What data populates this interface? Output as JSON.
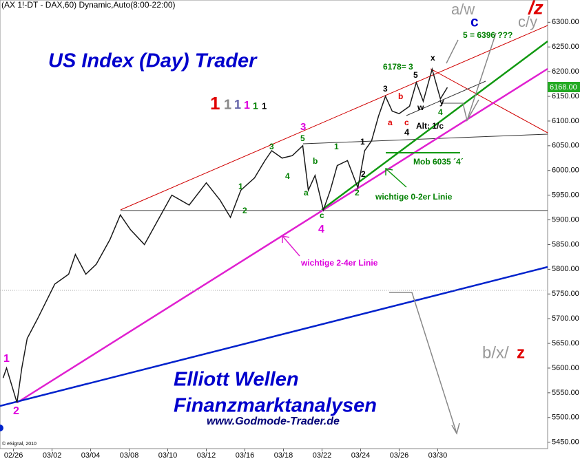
{
  "chart_data": {
    "type": "line",
    "header": "(AX 1!-DT - DAX,60) Dynamic,Auto(8:00-22:00)",
    "copyright": "© eSignal, 2010",
    "title": "US Index (Day) Trader",
    "subtitle_1": "Elliott Wellen",
    "subtitle_2": "Finanzmarktanalysen",
    "website": "www.Godmode-Trader.de",
    "last_price_label": "6168.00",
    "x": [
      -0.54,
      -0.36,
      0.18,
      0.43,
      0.71,
      1.25,
      2.14,
      2.86,
      3.21,
      3.75,
      4.29,
      5.0,
      5.54,
      6.07,
      6.79,
      7.5,
      8.21,
      9.11,
      10.0,
      10.71,
      11.25,
      11.79,
      12.5,
      13.04,
      13.39,
      13.93,
      14.46,
      15.0,
      15.29,
      15.64,
      16.07,
      16.43,
      16.79,
      17.32,
      17.86,
      18.21,
      18.57,
      18.93,
      19.29,
      19.64,
      20.0,
      20.54,
      20.89,
      21.25,
      21.71,
      22.14,
      22.5
    ],
    "series": [
      {
        "name": "DAX",
        "color": "#1a1a1a",
        "values": [
          5580,
          5600,
          5530,
          5600,
          5660,
          5700,
          5770,
          5790,
          5830,
          5790,
          5810,
          5860,
          5910,
          5880,
          5850,
          5900,
          5950,
          5930,
          5975,
          5940,
          5905,
          5960,
          5985,
          6020,
          6040,
          6025,
          6030,
          6050,
          5960,
          5990,
          5920,
          5960,
          6010,
          6020,
          5965,
          6040,
          6060,
          6110,
          6150,
          6120,
          6115,
          6130,
          6178,
          6140,
          6205,
          6145,
          6168
        ]
      }
    ],
    "xlim": [
      -0.7,
      27.7
    ],
    "xticks": [
      {
        "value": 0,
        "label": "02/26"
      },
      {
        "value": 2,
        "label": "03/02"
      },
      {
        "value": 4,
        "label": "03/04"
      },
      {
        "value": 6,
        "label": "03/08"
      },
      {
        "value": 8,
        "label": "03/10"
      },
      {
        "value": 10,
        "label": "03/12"
      },
      {
        "value": 12,
        "label": "03/16"
      },
      {
        "value": 14,
        "label": "03/18"
      },
      {
        "value": 16,
        "label": "03/22"
      },
      {
        "value": 18,
        "label": "03/24"
      },
      {
        "value": 20,
        "label": "03/26"
      },
      {
        "value": 22,
        "label": "03/30"
      }
    ],
    "ylim": [
      5437,
      6345
    ],
    "yticks": [
      {
        "value": 5450,
        "label": "5450.00"
      },
      {
        "value": 5500,
        "label": "5500.00"
      },
      {
        "value": 5550,
        "label": "5550.00"
      },
      {
        "value": 5600,
        "label": "5600.00"
      },
      {
        "value": 5650,
        "label": "5650.00"
      },
      {
        "value": 5700,
        "label": "5700.00"
      },
      {
        "value": 5750,
        "label": "5750.00"
      },
      {
        "value": 5800,
        "label": "5800.00"
      },
      {
        "value": 5850,
        "label": "5850.00"
      },
      {
        "value": 5900,
        "label": "5900.00"
      },
      {
        "value": 5950,
        "label": "5950.00"
      },
      {
        "value": 6000,
        "label": "6000.00"
      },
      {
        "value": 6050,
        "label": "6050.00"
      },
      {
        "value": 6100,
        "label": "6100.00"
      },
      {
        "value": 6150,
        "label": "6150.00"
      },
      {
        "value": 6200,
        "label": "6200.00"
      },
      {
        "value": 6250,
        "label": "6250.00"
      },
      {
        "value": 6300,
        "label": "6300.00"
      }
    ],
    "annotations": [
      {
        "text": "a/w",
        "color": "#999999"
      },
      {
        "text": "/z",
        "color": "#e00000"
      },
      {
        "text": "c",
        "color": "#0000cc"
      },
      {
        "text": "c/y",
        "color": "#999999"
      },
      {
        "text": "5 = 6396 ???",
        "color": "#008000"
      },
      {
        "text": "6178= 3",
        "color": "#008000"
      },
      {
        "text": "x",
        "color": "#000000"
      },
      {
        "text": "5",
        "color": "#000000"
      },
      {
        "text": "3",
        "color": "#000000"
      },
      {
        "text": "b",
        "color": "#e00000"
      },
      {
        "text": "a",
        "color": "#e00000"
      },
      {
        "text": "c",
        "color": "#e00000"
      },
      {
        "text": "4",
        "color": "#000000"
      },
      {
        "text": "w",
        "color": "#000000"
      },
      {
        "text": "y",
        "color": "#000000"
      },
      {
        "text": "4",
        "color": "#008000"
      },
      {
        "text": "Alt: 1/c",
        "color": "#000000"
      },
      {
        "text": "1",
        "color": "#e00000"
      },
      {
        "text": "1",
        "color": "#888888"
      },
      {
        "text": "1",
        "color": "#6666aa"
      },
      {
        "text": "1",
        "color": "#dd00dd"
      },
      {
        "text": "1",
        "color": "#008000"
      },
      {
        "text": "1",
        "color": "#000000"
      },
      {
        "text": "3",
        "color": "#dd00dd"
      },
      {
        "text": "3",
        "color": "#008000"
      },
      {
        "text": "5",
        "color": "#008000"
      },
      {
        "text": "1",
        "color": "#008000"
      },
      {
        "text": "1",
        "color": "#000000"
      },
      {
        "text": "b",
        "color": "#008000"
      },
      {
        "text": "4",
        "color": "#008000"
      },
      {
        "text": "a",
        "color": "#008000"
      },
      {
        "text": "2",
        "color": "#000000"
      },
      {
        "text": "2",
        "color": "#008000"
      },
      {
        "text": "1",
        "color": "#008000"
      },
      {
        "text": "2",
        "color": "#008000"
      },
      {
        "text": "c",
        "color": "#008000"
      },
      {
        "text": "4",
        "color": "#dd00dd"
      },
      {
        "text": "Mob 6035 ´4´",
        "color": "#008000"
      },
      {
        "text": "wichtige 0-2er Linie",
        "color": "#008000"
      },
      {
        "text": "wichtige 2-4er Linie",
        "color": "#dd00dd"
      },
      {
        "text": "1",
        "color": "#dd00dd"
      },
      {
        "text": "2",
        "color": "#dd00dd"
      },
      {
        "text": "b/x/",
        "color": "#999999"
      },
      {
        "text": "z",
        "color": "#e00000"
      }
    ]
  }
}
